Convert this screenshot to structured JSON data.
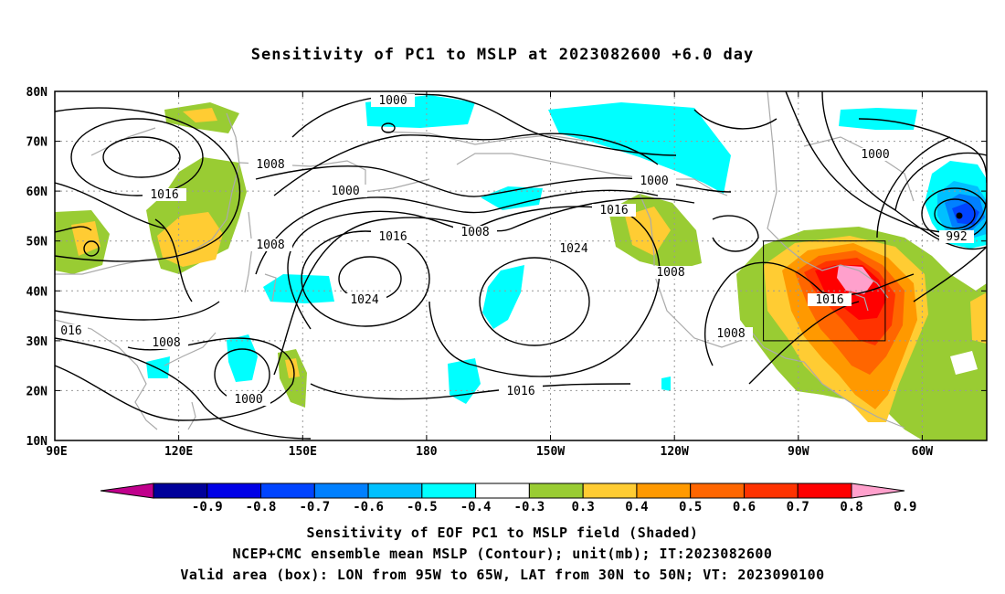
{
  "title": "Sensitivity of PC1 to MSLP at 2023082600 +6.0 day",
  "map": {
    "lat_labels": [
      "80N",
      "70N",
      "60N",
      "50N",
      "40N",
      "30N",
      "20N",
      "10N"
    ],
    "lon_labels": [
      "90E",
      "120E",
      "150E",
      "180",
      "150W",
      "120W",
      "90W",
      "60W"
    ],
    "contour_labels": [
      "1000",
      "1008",
      "1016",
      "1016",
      "1000",
      "1008",
      "1016",
      "1008",
      "1024",
      "1024",
      "1016",
      "1000",
      "1016",
      "1008",
      "1008",
      "1000",
      "1008",
      "992",
      "016",
      "1008",
      "1000",
      "1016"
    ],
    "contour_interval_mb": 8
  },
  "colorbar": {
    "colors": [
      "#c0008c",
      "#00009a",
      "#0000e6",
      "#0044ff",
      "#0080ff",
      "#00c0ff",
      "#00ffff",
      "#ffffff",
      "#99cc33",
      "#ffcc33",
      "#ff9900",
      "#ff6600",
      "#ff3300",
      "#ff0000",
      "#ffa0cc"
    ],
    "tick_labels": [
      "-0.9",
      "-0.8",
      "-0.7",
      "-0.6",
      "-0.5",
      "-0.4",
      "-0.3",
      "0.3",
      "0.4",
      "0.5",
      "0.6",
      "0.7",
      "0.8",
      "0.9"
    ]
  },
  "captions": [
    "Sensitivity of EOF PC1 to MSLP field (Shaded)",
    "NCEP+CMC ensemble mean MSLP (Contour); unit(mb); IT:2023082600",
    "Valid area (box): LON from 95W to 65W, LAT from 30N to 50N; VT: 2023090100"
  ]
}
